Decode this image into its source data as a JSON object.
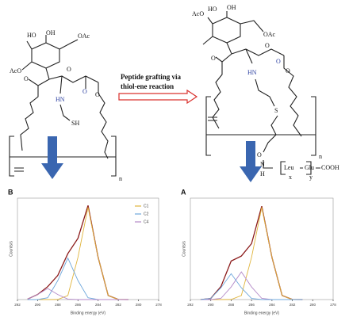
{
  "reaction": {
    "line1": "Peptide grafting via",
    "line2": "thiol-ene reaction"
  },
  "left_structure": {
    "labels": [
      "HO",
      "OH",
      "OAc",
      "AcO",
      "O",
      "O",
      "HN",
      "O",
      "O",
      "SH",
      "n"
    ]
  },
  "right_structure": {
    "labels": [
      "HO",
      "OH",
      "OAc",
      "AcO",
      "O",
      "O",
      "HN",
      "O",
      "O",
      "S",
      "O",
      "N",
      "H",
      "Leu",
      "Glu",
      "x",
      "y",
      "COOH",
      "n"
    ]
  },
  "chart_data": [
    {
      "type": "line",
      "title": "B",
      "x_label": "Binding energy (eV)",
      "y_label": "Counts/s",
      "x": [
        291,
        290,
        289,
        288,
        287,
        286,
        285,
        284,
        283,
        282,
        281
      ],
      "series": [
        {
          "color": "#8b1a1a",
          "values": [
            0.5,
            5.5,
            14,
            26.2,
            49.9,
            66.4,
            102,
            45.8,
            4.4,
            0.1,
            0
          ]
        },
        {
          "name": "C1",
          "color": "#e0b43c",
          "values": [
            0,
            0,
            0,
            0.1,
            4.4,
            45.8,
            100,
            45.8,
            4.4,
            0.1,
            0
          ]
        },
        {
          "name": "C2",
          "color": "#6fa8dc",
          "values": [
            0,
            0,
            2,
            20.6,
            45,
            20.6,
            2,
            0,
            0,
            0,
            0
          ]
        },
        {
          "name": "C4",
          "color": "#b48ac8",
          "values": [
            0.5,
            5.5,
            12,
            5.5,
            0.5,
            0,
            0,
            0,
            0,
            0,
            0
          ]
        }
      ],
      "xlim": [
        292,
        278
      ],
      "xticks": [
        292,
        290,
        288,
        286,
        284,
        282,
        280,
        278
      ],
      "ylim": [
        0,
        110
      ]
    },
    {
      "type": "line",
      "title": "A",
      "x_label": "Binding energy (eV)",
      "y_label": "Counts/s",
      "x": [
        291,
        290,
        289,
        288,
        287,
        286,
        285,
        284,
        283,
        282,
        281
      ],
      "series": [
        {
          "color": "#8b1a1a",
          "values": [
            0,
            1.2,
            14.1,
            41.8,
            47.2,
            60.7,
            101.3,
            45.8,
            4.4,
            0.1,
            0
          ]
        },
        {
          "color": "#e0b43c",
          "values": [
            0,
            0,
            0,
            0.1,
            4.4,
            45.8,
            100,
            45.8,
            4.4,
            0.1,
            0
          ]
        },
        {
          "color": "#b48ac8",
          "values": [
            0,
            0,
            1.3,
            13.7,
            30,
            13.7,
            1.3,
            0,
            0,
            0,
            0
          ]
        },
        {
          "color": "#6fa8dc",
          "values": [
            0,
            1.2,
            12.8,
            28,
            12.8,
            1.2,
            0,
            0,
            0,
            0,
            0
          ]
        }
      ],
      "xlim": [
        292,
        278
      ],
      "xticks": [
        292,
        290,
        288,
        286,
        284,
        282,
        280,
        278
      ],
      "ylim": [
        0,
        110
      ]
    }
  ]
}
